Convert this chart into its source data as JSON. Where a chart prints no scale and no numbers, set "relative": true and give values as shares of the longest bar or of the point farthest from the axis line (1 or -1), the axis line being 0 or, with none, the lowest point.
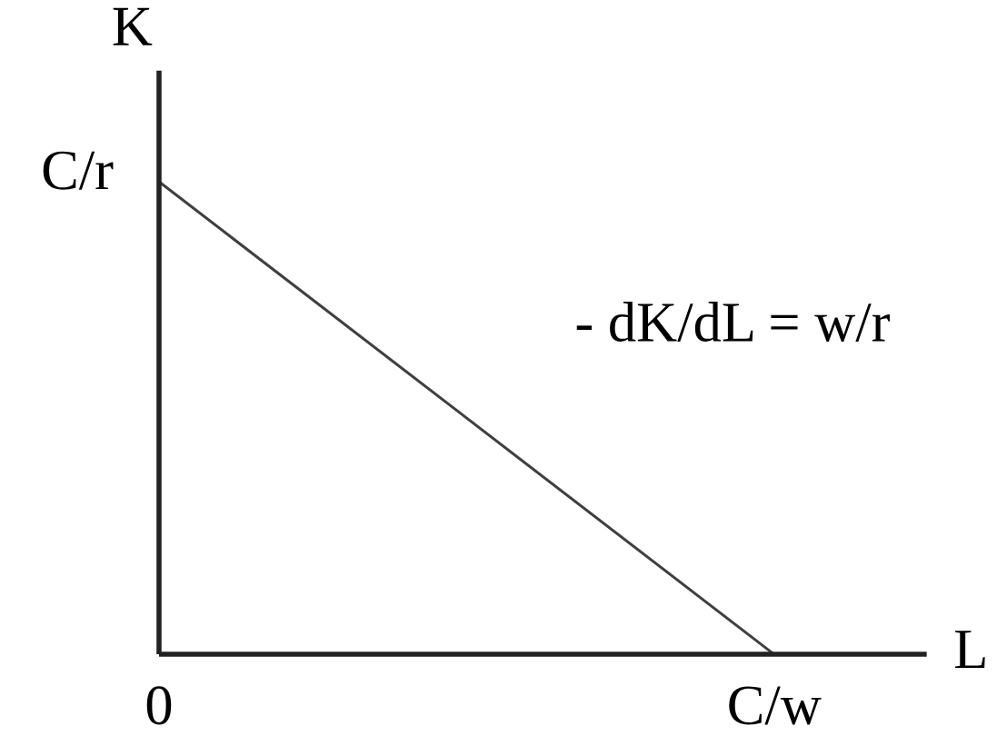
{
  "chart_data": {
    "type": "line",
    "xlabel": "L",
    "ylabel": "K",
    "relative": true,
    "categories": [
      "0",
      "C/w"
    ],
    "series": [
      {
        "color": "#404040",
        "values": [
          1,
          0
        ]
      }
    ],
    "annotations": [
      {
        "text": "C/r",
        "x": "0",
        "y": 1
      },
      "- dK/dL = w/r"
    ],
    "grid": false,
    "marker": "none",
    "line_style": "solid"
  }
}
